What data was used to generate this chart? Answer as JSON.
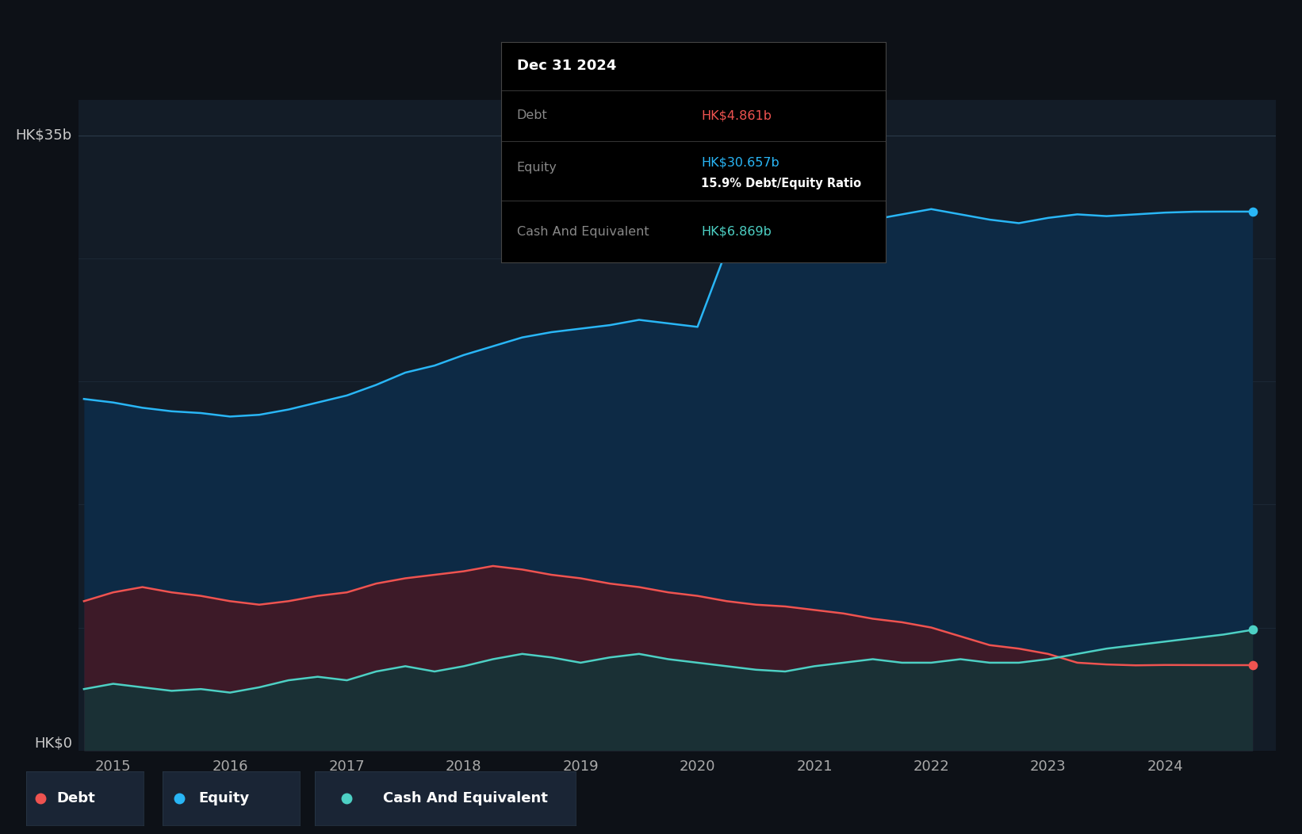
{
  "bg_color": "#0d1117",
  "plot_bg_color": "#131c27",
  "ylabel_top": "HK$35b",
  "ylabel_bottom": "HK$0",
  "equity_color": "#29b6f6",
  "debt_color": "#ef5350",
  "cash_color": "#4dd0c4",
  "equity_fill": "#0d2a45",
  "debt_fill": "#3d1a28",
  "cash_fill": "#1a3035",
  "tooltip_bg": "#000000",
  "tooltip_title": "Dec 31 2024",
  "tooltip_debt_label": "Debt",
  "tooltip_debt_value": "HK$4.861b",
  "tooltip_equity_label": "Equity",
  "tooltip_equity_value": "HK$30.657b",
  "tooltip_ratio": "15.9% Debt/Equity Ratio",
  "tooltip_cash_label": "Cash And Equivalent",
  "tooltip_cash_value": "HK$6.869b",
  "years": [
    2014.75,
    2015.0,
    2015.25,
    2015.5,
    2015.75,
    2016.0,
    2016.25,
    2016.5,
    2016.75,
    2017.0,
    2017.25,
    2017.5,
    2017.75,
    2018.0,
    2018.25,
    2018.5,
    2018.75,
    2019.0,
    2019.25,
    2019.5,
    2019.75,
    2020.0,
    2020.25,
    2020.5,
    2020.75,
    2021.0,
    2021.25,
    2021.5,
    2021.75,
    2022.0,
    2022.25,
    2022.5,
    2022.75,
    2023.0,
    2023.25,
    2023.5,
    2023.75,
    2024.0,
    2024.25,
    2024.5,
    2024.75
  ],
  "equity": [
    20.0,
    19.8,
    19.5,
    19.3,
    19.2,
    19.0,
    19.1,
    19.4,
    19.8,
    20.2,
    20.8,
    21.5,
    21.9,
    22.5,
    23.0,
    23.5,
    23.8,
    24.0,
    24.2,
    24.5,
    24.3,
    24.1,
    28.5,
    29.0,
    29.5,
    29.8,
    30.0,
    30.2,
    30.5,
    30.8,
    30.5,
    30.2,
    30.0,
    30.3,
    30.5,
    30.4,
    30.5,
    30.6,
    30.65,
    30.657,
    30.657
  ],
  "debt": [
    8.5,
    9.0,
    9.3,
    9.0,
    8.8,
    8.5,
    8.3,
    8.5,
    8.8,
    9.0,
    9.5,
    9.8,
    10.0,
    10.2,
    10.5,
    10.3,
    10.0,
    9.8,
    9.5,
    9.3,
    9.0,
    8.8,
    8.5,
    8.3,
    8.2,
    8.0,
    7.8,
    7.5,
    7.3,
    7.0,
    6.5,
    6.0,
    5.8,
    5.5,
    5.0,
    4.9,
    4.85,
    4.87,
    4.865,
    4.861,
    4.861
  ],
  "cash": [
    3.5,
    3.8,
    3.6,
    3.4,
    3.5,
    3.3,
    3.6,
    4.0,
    4.2,
    4.0,
    4.5,
    4.8,
    4.5,
    4.8,
    5.2,
    5.5,
    5.3,
    5.0,
    5.3,
    5.5,
    5.2,
    5.0,
    4.8,
    4.6,
    4.5,
    4.8,
    5.0,
    5.2,
    5.0,
    5.0,
    5.2,
    5.0,
    5.0,
    5.2,
    5.5,
    5.8,
    6.0,
    6.2,
    6.4,
    6.6,
    6.869
  ],
  "xlim": [
    2014.7,
    2024.95
  ],
  "ylim": [
    0,
    37
  ],
  "xticks": [
    2015,
    2016,
    2017,
    2018,
    2019,
    2020,
    2021,
    2022,
    2023,
    2024
  ],
  "grid_color": "#2a3a4a",
  "legend_bg": "#1a2535"
}
